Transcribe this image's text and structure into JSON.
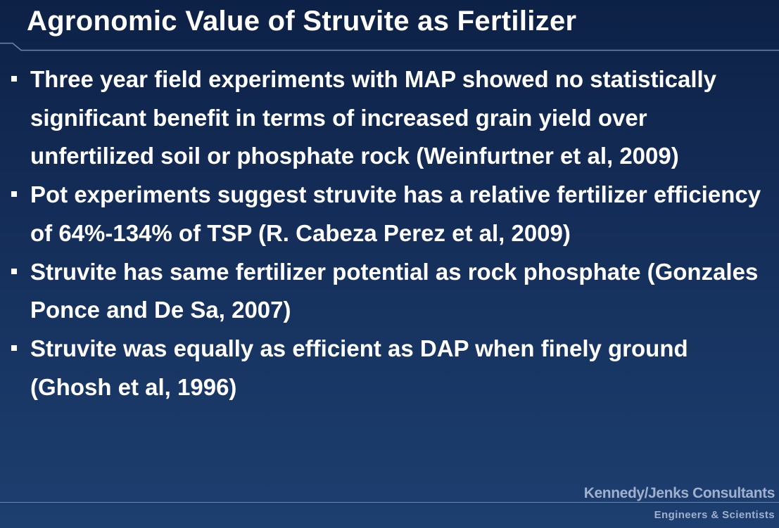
{
  "slide": {
    "title": "Agronomic Value of Struvite as Fertilizer",
    "bullets": [
      "Three year field experiments with MAP showed no statistically significant benefit in terms of increased grain yield over unfertilized soil or phosphate rock (Weinfurtner et al, 2009)",
      "Pot experiments suggest struvite has a relative fertilizer efficiency of 64%-134% of TSP (R. Cabeza Perez et al, 2009)",
      "Struvite has same fertilizer potential as rock phosphate (Gonzales Ponce and De Sa, 2007)",
      "Struvite was equally as efficient as DAP when finely ground (Ghosh et al, 1996)"
    ]
  },
  "logo": {
    "company": "Kennedy/Jenks Consultants",
    "tagline": "Engineers & Scientists"
  },
  "colors": {
    "background_top": "#0d2146",
    "background_bottom": "#1d3f70",
    "text": "#ffffff",
    "rule": "#6d86ad",
    "logo": "#9fb1cc"
  }
}
